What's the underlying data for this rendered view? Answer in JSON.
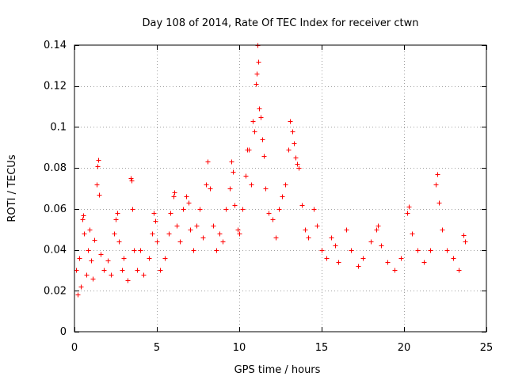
{
  "chart_data": {
    "type": "scatter",
    "title": "Day 108 of 2014, Rate Of TEC Index for receiver ctwn",
    "xlabel": "GPS time / hours",
    "ylabel": "ROTI / TECUs",
    "xlim": [
      0,
      25
    ],
    "ylim": [
      0,
      0.14
    ],
    "grid": true,
    "marker": "+",
    "color": "#ff0000",
    "x_ticks": [
      0,
      5,
      10,
      15,
      20,
      25
    ],
    "x_tick_labels": [
      "0",
      "5",
      "10",
      "15",
      "20",
      "25"
    ],
    "y_ticks": [
      0,
      0.02,
      0.04,
      0.06,
      0.08,
      0.1,
      0.12,
      0.14
    ],
    "y_tick_labels": [
      "0",
      "0.02",
      "0.04",
      "0.06",
      "0.08",
      "0.1",
      "0.12",
      "0.14"
    ],
    "series": [
      {
        "name": "ROTI",
        "points": [
          [
            0.1,
            0.03
          ],
          [
            0.2,
            0.018
          ],
          [
            0.3,
            0.036
          ],
          [
            0.4,
            0.022
          ],
          [
            0.5,
            0.055
          ],
          [
            0.55,
            0.057
          ],
          [
            0.6,
            0.048
          ],
          [
            0.7,
            0.028
          ],
          [
            0.8,
            0.04
          ],
          [
            0.9,
            0.05
          ],
          [
            1.0,
            0.035
          ],
          [
            1.1,
            0.026
          ],
          [
            1.2,
            0.045
          ],
          [
            1.35,
            0.072
          ],
          [
            1.4,
            0.081
          ],
          [
            1.45,
            0.084
          ],
          [
            1.5,
            0.067
          ],
          [
            1.6,
            0.038
          ],
          [
            1.8,
            0.03
          ],
          [
            2.0,
            0.035
          ],
          [
            2.2,
            0.028
          ],
          [
            2.4,
            0.048
          ],
          [
            2.5,
            0.055
          ],
          [
            2.6,
            0.058
          ],
          [
            2.7,
            0.044
          ],
          [
            2.9,
            0.03
          ],
          [
            3.0,
            0.036
          ],
          [
            3.2,
            0.025
          ],
          [
            3.4,
            0.075
          ],
          [
            3.45,
            0.074
          ],
          [
            3.5,
            0.06
          ],
          [
            3.6,
            0.04
          ],
          [
            3.8,
            0.03
          ],
          [
            4.0,
            0.04
          ],
          [
            4.2,
            0.028
          ],
          [
            4.5,
            0.036
          ],
          [
            4.7,
            0.048
          ],
          [
            4.8,
            0.058
          ],
          [
            4.9,
            0.054
          ],
          [
            5.0,
            0.044
          ],
          [
            5.2,
            0.03
          ],
          [
            5.5,
            0.036
          ],
          [
            5.7,
            0.048
          ],
          [
            5.8,
            0.058
          ],
          [
            6.0,
            0.066
          ],
          [
            6.05,
            0.068
          ],
          [
            6.2,
            0.052
          ],
          [
            6.4,
            0.044
          ],
          [
            6.6,
            0.06
          ],
          [
            6.8,
            0.066
          ],
          [
            6.9,
            0.063
          ],
          [
            7.0,
            0.05
          ],
          [
            7.2,
            0.04
          ],
          [
            7.4,
            0.052
          ],
          [
            7.6,
            0.06
          ],
          [
            7.8,
            0.046
          ],
          [
            8.0,
            0.072
          ],
          [
            8.1,
            0.083
          ],
          [
            8.2,
            0.07
          ],
          [
            8.4,
            0.052
          ],
          [
            8.6,
            0.04
          ],
          [
            8.8,
            0.048
          ],
          [
            9.0,
            0.044
          ],
          [
            9.2,
            0.06
          ],
          [
            9.4,
            0.07
          ],
          [
            9.5,
            0.083
          ],
          [
            9.6,
            0.078
          ],
          [
            9.7,
            0.062
          ],
          [
            9.9,
            0.05
          ],
          [
            10.0,
            0.048
          ],
          [
            10.2,
            0.06
          ],
          [
            10.4,
            0.076
          ],
          [
            10.5,
            0.089
          ],
          [
            10.6,
            0.089
          ],
          [
            10.7,
            0.072
          ],
          [
            10.8,
            0.103
          ],
          [
            10.9,
            0.098
          ],
          [
            11.0,
            0.121
          ],
          [
            11.05,
            0.126
          ],
          [
            11.1,
            0.14
          ],
          [
            11.15,
            0.132
          ],
          [
            11.2,
            0.109
          ],
          [
            11.3,
            0.105
          ],
          [
            11.4,
            0.094
          ],
          [
            11.5,
            0.086
          ],
          [
            11.6,
            0.07
          ],
          [
            11.8,
            0.058
          ],
          [
            12.0,
            0.055
          ],
          [
            12.2,
            0.046
          ],
          [
            12.4,
            0.06
          ],
          [
            12.6,
            0.066
          ],
          [
            12.8,
            0.072
          ],
          [
            13.0,
            0.089
          ],
          [
            13.1,
            0.103
          ],
          [
            13.2,
            0.098
          ],
          [
            13.3,
            0.092
          ],
          [
            13.4,
            0.085
          ],
          [
            13.5,
            0.082
          ],
          [
            13.6,
            0.08
          ],
          [
            13.8,
            0.062
          ],
          [
            14.0,
            0.05
          ],
          [
            14.2,
            0.046
          ],
          [
            14.5,
            0.06
          ],
          [
            14.7,
            0.052
          ],
          [
            15.0,
            0.04
          ],
          [
            15.3,
            0.036
          ],
          [
            15.6,
            0.046
          ],
          [
            15.8,
            0.042
          ],
          [
            16.0,
            0.034
          ],
          [
            16.5,
            0.05
          ],
          [
            16.8,
            0.04
          ],
          [
            17.2,
            0.032
          ],
          [
            17.5,
            0.036
          ],
          [
            18.0,
            0.044
          ],
          [
            18.3,
            0.05
          ],
          [
            18.4,
            0.052
          ],
          [
            18.6,
            0.042
          ],
          [
            19.0,
            0.034
          ],
          [
            19.4,
            0.03
          ],
          [
            19.8,
            0.036
          ],
          [
            20.2,
            0.058
          ],
          [
            20.3,
            0.061
          ],
          [
            20.5,
            0.048
          ],
          [
            20.8,
            0.04
          ],
          [
            21.2,
            0.034
          ],
          [
            21.6,
            0.04
          ],
          [
            21.9,
            0.072
          ],
          [
            22.0,
            0.077
          ],
          [
            22.1,
            0.063
          ],
          [
            22.3,
            0.05
          ],
          [
            22.6,
            0.04
          ],
          [
            23.0,
            0.036
          ],
          [
            23.3,
            0.03
          ],
          [
            23.6,
            0.047
          ],
          [
            23.7,
            0.044
          ]
        ]
      }
    ]
  }
}
